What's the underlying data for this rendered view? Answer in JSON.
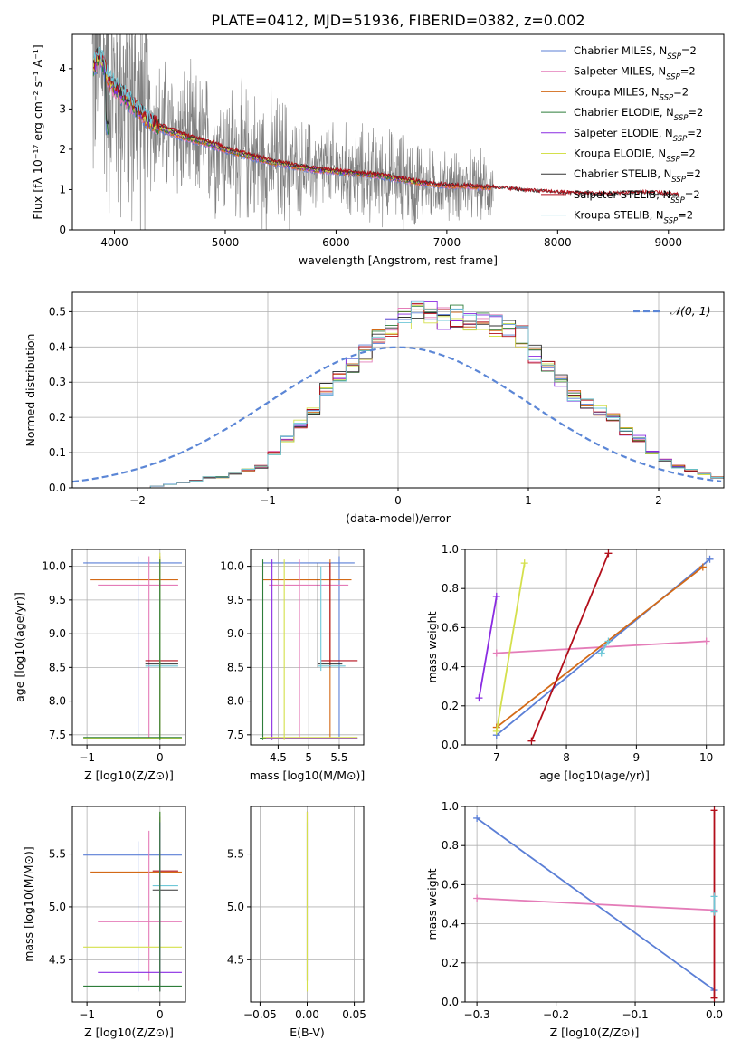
{
  "figure_title": "PLATE=0412, MJD=51936, FIBERID=0382, z=0.002",
  "colors": {
    "Chabrier MILES": "#5b7fd6",
    "Salpeter MILES": "#e47cb8",
    "Kroupa MILES": "#d36a17",
    "Chabrier ELODIE": "#2e7d3a",
    "Salpeter ELODIE": "#8a2be2",
    "Kroupa ELODIE": "#d4e04b",
    "Chabrier STELIB": "#333333",
    "Salpeter STELIB": "#b30f1b",
    "Kroupa STELIB": "#6fc8d8",
    "data": "#808080",
    "gauss": "#5b86d6"
  },
  "chart_data": [
    {
      "id": "spectrum",
      "type": "line",
      "title": "PLATE=0412, MJD=51936, FIBERID=0382, z=0.002",
      "xlabel": "wavelength [Angstrom, rest frame]",
      "ylabel": "Flux [fλ 10⁻¹⁷ erg cm⁻² s⁻¹ A⁻¹]",
      "xlim": [
        3620,
        9500
      ],
      "ylim": [
        0,
        4.85
      ],
      "xticks": [
        4000,
        5000,
        6000,
        7000,
        8000,
        9000
      ],
      "yticks": [
        0,
        1,
        2,
        3,
        4
      ],
      "legend_loc": "right",
      "legend": [
        "Chabrier MILES, N_SSP=2",
        "Salpeter MILES, N_SSP=2",
        "Kroupa MILES, N_SSP=2",
        "Chabrier ELODIE, N_SSP=2",
        "Salpeter ELODIE, N_SSP=2",
        "Kroupa ELODIE, N_SSP=2",
        "Chabrier STELIB, N_SSP=2",
        "Salpeter STELIB, N_SSP=2",
        "Kroupa STELIB, N_SSP=2"
      ],
      "data_range": [
        3800,
        7420
      ],
      "model_x": [
        3810,
        3850,
        3900,
        3950,
        4000,
        4050,
        4100,
        4200,
        4300,
        4400,
        4500,
        4600,
        4700,
        4800,
        4900,
        5000,
        5200,
        5400,
        5600,
        5800,
        6000,
        6200,
        6400,
        6600,
        6800,
        7000,
        7200,
        7400,
        7600,
        7800,
        8000,
        8200,
        8400,
        8600,
        8800,
        9000,
        9200
      ],
      "model_y": [
        4.0,
        4.3,
        4.1,
        3.7,
        3.55,
        3.4,
        3.3,
        3.0,
        2.75,
        2.55,
        2.45,
        2.35,
        2.25,
        2.2,
        2.1,
        2.0,
        1.85,
        1.7,
        1.6,
        1.5,
        1.45,
        1.4,
        1.35,
        1.25,
        1.15,
        1.1,
        1.08,
        1.05,
        1.0,
        0.95,
        0.92,
        0.9,
        0.88,
        0.9,
        0.92,
        0.88,
        0.82
      ]
    },
    {
      "id": "residuals",
      "type": "step",
      "xlabel": "(data-model)/error",
      "ylabel": "Normed distribution",
      "xlim": [
        -2.5,
        2.5
      ],
      "ylim": [
        0,
        0.555
      ],
      "xticks": [
        -2,
        -1,
        0,
        1,
        2
      ],
      "xtick_labels": [
        "−2",
        "−1",
        "0",
        "1",
        "2"
      ],
      "yticks": [
        0,
        0.1,
        0.2,
        0.3,
        0.4,
        0.5
      ],
      "bin_width": 0.1,
      "bin_start": -2.5,
      "hist": [
        0.0,
        0.0,
        0.0,
        0.0,
        0.0,
        0.0,
        0.005,
        0.01,
        0.015,
        0.02,
        0.03,
        0.03,
        0.04,
        0.05,
        0.06,
        0.1,
        0.14,
        0.18,
        0.22,
        0.28,
        0.31,
        0.35,
        0.38,
        0.42,
        0.45,
        0.48,
        0.5,
        0.5,
        0.48,
        0.49,
        0.47,
        0.47,
        0.46,
        0.45,
        0.43,
        0.38,
        0.34,
        0.3,
        0.26,
        0.24,
        0.22,
        0.2,
        0.16,
        0.14,
        0.1,
        0.08,
        0.06,
        0.05,
        0.04,
        0.03
      ],
      "gauss_label": "𝒩(0, 1)",
      "legend_loc": "upper right"
    },
    {
      "id": "age-vs-z",
      "type": "errorbar",
      "xlabel": "Z [log10(Z/Z⊙)]",
      "ylabel": "age [log10(age/yr)]",
      "xlim": [
        -1.2,
        0.35
      ],
      "ylim": [
        7.35,
        10.25
      ],
      "xticks": [
        -1,
        0
      ],
      "xtick_labels": [
        "−1",
        "0"
      ],
      "yticks": [
        7.5,
        8.0,
        8.5,
        9.0,
        9.5,
        10.0
      ]
    },
    {
      "id": "age-vs-mass",
      "type": "errorbar",
      "xlabel": "mass [log10(M/M⊙)]",
      "xlim": [
        4.05,
        5.9
      ],
      "ylim": [
        7.35,
        10.25
      ],
      "xticks": [
        4.5,
        5.0,
        5.5
      ],
      "yticks": [
        7.5,
        8.0,
        8.5,
        9.0,
        9.5,
        10.0
      ]
    },
    {
      "id": "massweight-vs-age",
      "type": "line",
      "xlabel": "age [log10(age/yr)]",
      "ylabel": "mass weight",
      "xlim": [
        6.55,
        10.25
      ],
      "ylim": [
        0,
        1.0
      ],
      "xticks": [
        7,
        8,
        9,
        10
      ],
      "yticks": [
        0.0,
        0.2,
        0.4,
        0.6,
        0.8,
        1.0
      ],
      "series": [
        {
          "name": "Chabrier MILES",
          "x": [
            7.0,
            10.05
          ],
          "y": [
            0.05,
            0.95
          ]
        },
        {
          "name": "Salpeter MILES",
          "x": [
            7.0,
            10.0
          ],
          "y": [
            0.47,
            0.53
          ]
        },
        {
          "name": "Kroupa MILES",
          "x": [
            7.0,
            9.95
          ],
          "y": [
            0.09,
            0.91
          ]
        },
        {
          "name": "Salpeter ELODIE",
          "x": [
            6.75,
            7.0
          ],
          "y": [
            0.24,
            0.76
          ]
        },
        {
          "name": "Kroupa ELODIE",
          "x": [
            7.0,
            7.4
          ],
          "y": [
            0.07,
            0.93
          ]
        },
        {
          "name": "Salpeter STELIB",
          "x": [
            7.5,
            8.6
          ],
          "y": [
            0.02,
            0.98
          ]
        },
        {
          "name": "Kroupa STELIB",
          "x": [
            8.5,
            8.6
          ],
          "y": [
            0.47,
            0.53
          ]
        }
      ]
    },
    {
      "id": "mass-vs-z",
      "type": "errorbar",
      "xlabel": "Z [log10(Z/Z⊙)]",
      "ylabel": "mass [log10(M/M⊙)]",
      "xlim": [
        -1.2,
        0.35
      ],
      "ylim": [
        4.1,
        5.95
      ],
      "xticks": [
        -1,
        0
      ],
      "xtick_labels": [
        "−1",
        "0"
      ],
      "yticks": [
        4.5,
        5.0,
        5.5
      ]
    },
    {
      "id": "mass-vs-ebv",
      "type": "errorbar",
      "xlabel": "E(B-V)",
      "xlim": [
        -0.06,
        0.06
      ],
      "ylim": [
        4.1,
        5.95
      ],
      "xticks": [
        -0.05,
        0.0,
        0.05
      ],
      "xtick_labels": [
        "−0.05",
        "0.00",
        "0.05"
      ],
      "yticks": [
        4.5,
        5.0,
        5.5
      ]
    },
    {
      "id": "massweight-vs-z",
      "type": "line",
      "xlabel": "Z [log10(Z/Z⊙)]",
      "ylabel": "mass weight",
      "xlim": [
        -0.315,
        0.012
      ],
      "ylim": [
        0,
        1.0
      ],
      "xticks": [
        -0.3,
        -0.2,
        -0.1,
        0.0
      ],
      "xtick_labels": [
        "−0.3",
        "−0.2",
        "−0.1",
        "0.0"
      ],
      "yticks": [
        0.0,
        0.2,
        0.4,
        0.6,
        0.8,
        1.0
      ],
      "series": [
        {
          "name": "Chabrier MILES",
          "x": [
            -0.3,
            0.0
          ],
          "y": [
            0.94,
            0.06
          ]
        },
        {
          "name": "Salpeter MILES",
          "x": [
            -0.3,
            0.0
          ],
          "y": [
            0.53,
            0.47
          ]
        },
        {
          "name": "Salpeter STELIB",
          "x": [
            0.0,
            0.0
          ],
          "y": [
            0.02,
            0.98
          ]
        },
        {
          "name": "Kroupa STELIB",
          "x": [
            0.0,
            0.0
          ],
          "y": [
            0.46,
            0.54
          ]
        }
      ]
    }
  ],
  "errorbars": {
    "age-vs-z": [
      {
        "c": "Chabrier MILES",
        "x": -0.3,
        "y": 10.05,
        "xlo": -1.05,
        "xhi": 0.3,
        "ylo": 7.47,
        "yhi": 10.15
      },
      {
        "c": "Kroupa MILES",
        "x": 0.0,
        "y": 9.8,
        "xlo": -0.95,
        "xhi": 0.25,
        "ylo": 7.45,
        "yhi": 10.15
      },
      {
        "c": "Salpeter MILES",
        "x": -0.15,
        "y": 9.72,
        "xlo": -0.85,
        "xhi": 0.25,
        "ylo": 7.45,
        "yhi": 10.15
      },
      {
        "c": "Salpeter STELIB",
        "x": 0.0,
        "y": 8.6,
        "xlo": -0.2,
        "xhi": 0.25,
        "ylo": 8.5,
        "yhi": 9.8
      },
      {
        "c": "Chabrier STELIB",
        "x": 0.0,
        "y": 8.55,
        "xlo": -0.2,
        "xhi": 0.25,
        "ylo": 8.5,
        "yhi": 9.75
      },
      {
        "c": "Kroupa STELIB",
        "x": 0.0,
        "y": 8.52,
        "xlo": -0.2,
        "xhi": 0.25,
        "ylo": 8.45,
        "yhi": 9.7
      },
      {
        "c": "Kroupa ELODIE",
        "x": 0.0,
        "y": 7.45,
        "xlo": -1.05,
        "xhi": 0.3,
        "ylo": 7.42,
        "yhi": 10.2
      },
      {
        "c": "Chabrier ELODIE",
        "x": 0.0,
        "y": 7.46,
        "xlo": -1.05,
        "xhi": 0.3,
        "ylo": 7.42,
        "yhi": 10.1
      }
    ],
    "age-vs-mass": [
      {
        "c": "Chabrier MILES",
        "x": 5.5,
        "y": 10.05,
        "xlo": 4.25,
        "xhi": 5.75,
        "ylo": 7.47,
        "yhi": 10.15
      },
      {
        "c": "Kroupa MILES",
        "x": 5.35,
        "y": 9.8,
        "xlo": 4.25,
        "xhi": 5.7,
        "ylo": 7.45,
        "yhi": 10.1
      },
      {
        "c": "Salpeter MILES",
        "x": 4.85,
        "y": 9.72,
        "xlo": 4.35,
        "xhi": 5.65,
        "ylo": 7.45,
        "yhi": 10.1
      },
      {
        "c": "Salpeter STELIB",
        "x": 5.35,
        "y": 8.6,
        "xlo": 5.2,
        "xhi": 5.8,
        "ylo": 8.5,
        "yhi": 10.05
      },
      {
        "c": "Chabrier STELIB",
        "x": 5.15,
        "y": 8.55,
        "xlo": 5.15,
        "xhi": 5.55,
        "ylo": 8.5,
        "yhi": 10.05
      },
      {
        "c": "Kroupa STELIB",
        "x": 5.2,
        "y": 8.52,
        "xlo": 5.15,
        "xhi": 5.6,
        "ylo": 8.45,
        "yhi": 10.0
      },
      {
        "c": "Chabrier ELODIE",
        "x": 4.25,
        "y": 7.45,
        "xlo": 4.2,
        "xhi": 5.5,
        "ylo": 7.42,
        "yhi": 10.1
      },
      {
        "c": "Salpeter ELODIE",
        "x": 4.4,
        "y": 7.45,
        "xlo": 4.3,
        "xhi": 5.8,
        "ylo": 7.42,
        "yhi": 10.1
      },
      {
        "c": "Kroupa ELODIE",
        "x": 4.6,
        "y": 7.46,
        "xlo": 4.25,
        "xhi": 5.8,
        "ylo": 7.42,
        "yhi": 10.1
      }
    ],
    "mass-vs-z": [
      {
        "c": "Chabrier MILES",
        "x": -0.3,
        "y": 5.49,
        "xlo": -1.05,
        "xhi": 0.3,
        "ylo": 4.2,
        "yhi": 5.62
      },
      {
        "c": "Salpeter STELIB",
        "x": 0.0,
        "y": 5.34,
        "xlo": -0.1,
        "xhi": 0.25,
        "ylo": 4.3,
        "yhi": 5.85
      },
      {
        "c": "Kroupa MILES",
        "x": 0.0,
        "y": 5.33,
        "xlo": -0.95,
        "xhi": 0.3,
        "ylo": 4.2,
        "yhi": 5.8
      },
      {
        "c": "Kroupa STELIB",
        "x": 0.0,
        "y": 5.2,
        "xlo": -0.1,
        "xhi": 0.25,
        "ylo": 4.3,
        "yhi": 5.8
      },
      {
        "c": "Chabrier STELIB",
        "x": 0.0,
        "y": 5.16,
        "xlo": -0.1,
        "xhi": 0.25,
        "ylo": 4.3,
        "yhi": 5.8
      },
      {
        "c": "Salpeter MILES",
        "x": -0.15,
        "y": 4.86,
        "xlo": -0.85,
        "xhi": 0.3,
        "ylo": 4.3,
        "yhi": 5.72
      },
      {
        "c": "Kroupa ELODIE",
        "x": 0.0,
        "y": 4.62,
        "xlo": -1.05,
        "xhi": 0.3,
        "ylo": 4.2,
        "yhi": 5.9
      },
      {
        "c": "Salpeter ELODIE",
        "x": 0.0,
        "y": 4.38,
        "xlo": -0.85,
        "xhi": 0.3,
        "ylo": 4.2,
        "yhi": 5.8
      },
      {
        "c": "Chabrier ELODIE",
        "x": 0.0,
        "y": 4.25,
        "xlo": -1.05,
        "xhi": 0.3,
        "ylo": 4.2,
        "yhi": 5.9
      }
    ],
    "mass-vs-ebv": [
      {
        "c": "Salpeter STELIB",
        "x": 0.0,
        "y": 5.5,
        "xlo": 0.0,
        "xhi": 0.0,
        "ylo": 4.3,
        "yhi": 5.9
      },
      {
        "c": "Kroupa STELIB",
        "x": 0.0,
        "y": 5.2,
        "xlo": 0.0,
        "xhi": 0.0,
        "ylo": 4.3,
        "yhi": 5.8
      },
      {
        "c": "Kroupa ELODIE",
        "x": 0.0,
        "y": 4.6,
        "xlo": 0.0,
        "xhi": 0.0,
        "ylo": 4.2,
        "yhi": 5.9
      }
    ]
  }
}
